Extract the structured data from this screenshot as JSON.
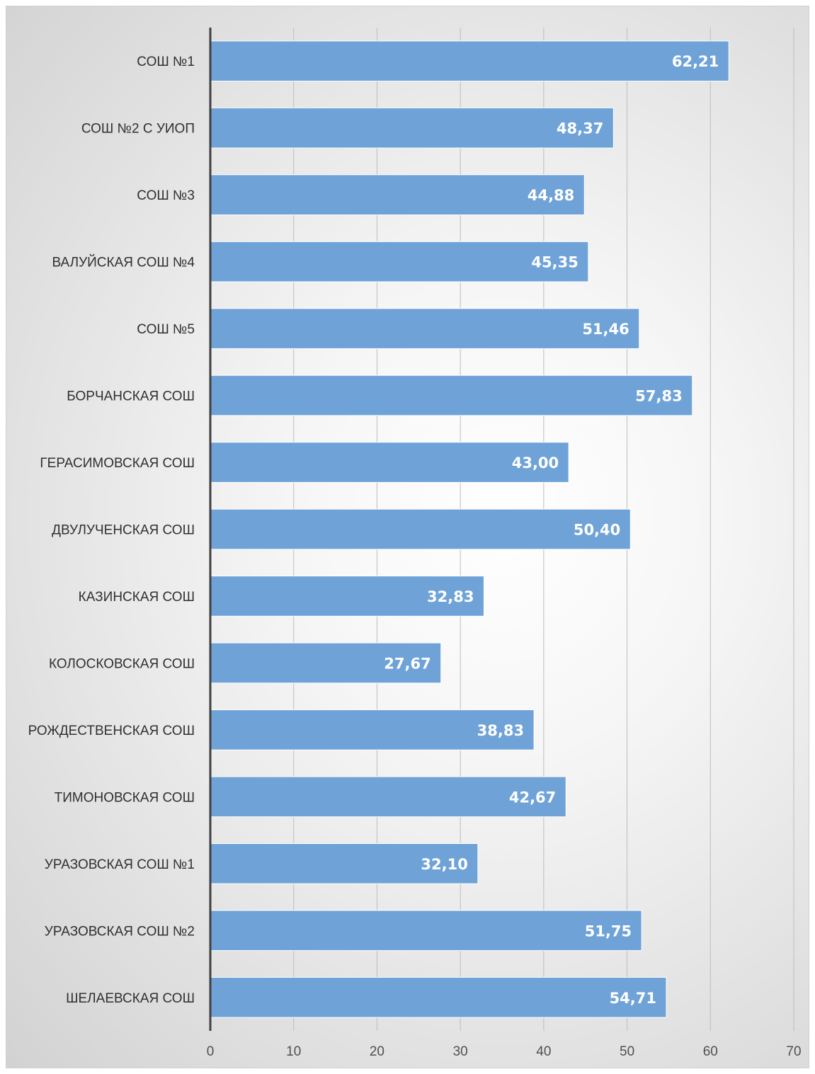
{
  "chart_data": {
    "type": "bar",
    "orientation": "horizontal",
    "categories": [
      "СОШ №1",
      "СОШ №2 С УИОП",
      "СОШ №3",
      "ВАЛУЙСКАЯ СОШ №4",
      "СОШ №5",
      "БОРЧАНСКАЯ СОШ",
      "ГЕРАСИМОВСКАЯ СОШ",
      "ДВУЛУЧЕНСКАЯ СОШ",
      "КАЗИНСКАЯ СОШ",
      "КОЛОСКОВСКАЯ СОШ",
      "РОЖДЕСТВЕНСКАЯ СОШ",
      "ТИМОНОВСКАЯ СОШ",
      "УРАЗОВСКАЯ СОШ №1",
      "УРАЗОВСКАЯ СОШ №2",
      "ШЕЛАЕВСКАЯ СОШ"
    ],
    "values": [
      62.21,
      48.37,
      44.88,
      45.35,
      51.46,
      57.83,
      43.0,
      50.4,
      32.83,
      27.67,
      38.83,
      42.67,
      32.1,
      51.75,
      54.71
    ],
    "data_labels": [
      "62,21",
      "48,37",
      "44,88",
      "45,35",
      "51,46",
      "57,83",
      "43,00",
      "50,40",
      "32,83",
      "27,67",
      "38,83",
      "42,67",
      "32,10",
      "51,75",
      "54,71"
    ],
    "xlim": [
      0,
      70
    ],
    "x_ticks": [
      "0",
      "10",
      "20",
      "30",
      "40",
      "50",
      "60",
      "70"
    ],
    "title": "",
    "xlabel": "",
    "ylabel": "",
    "grid": "vertical",
    "legend": "none",
    "colors": {
      "bar": "#6fa3d8",
      "bar_edge": "#ffffff",
      "axis": "#404040",
      "grid": "#bdbdbd",
      "data_label": "#ffffff"
    }
  }
}
